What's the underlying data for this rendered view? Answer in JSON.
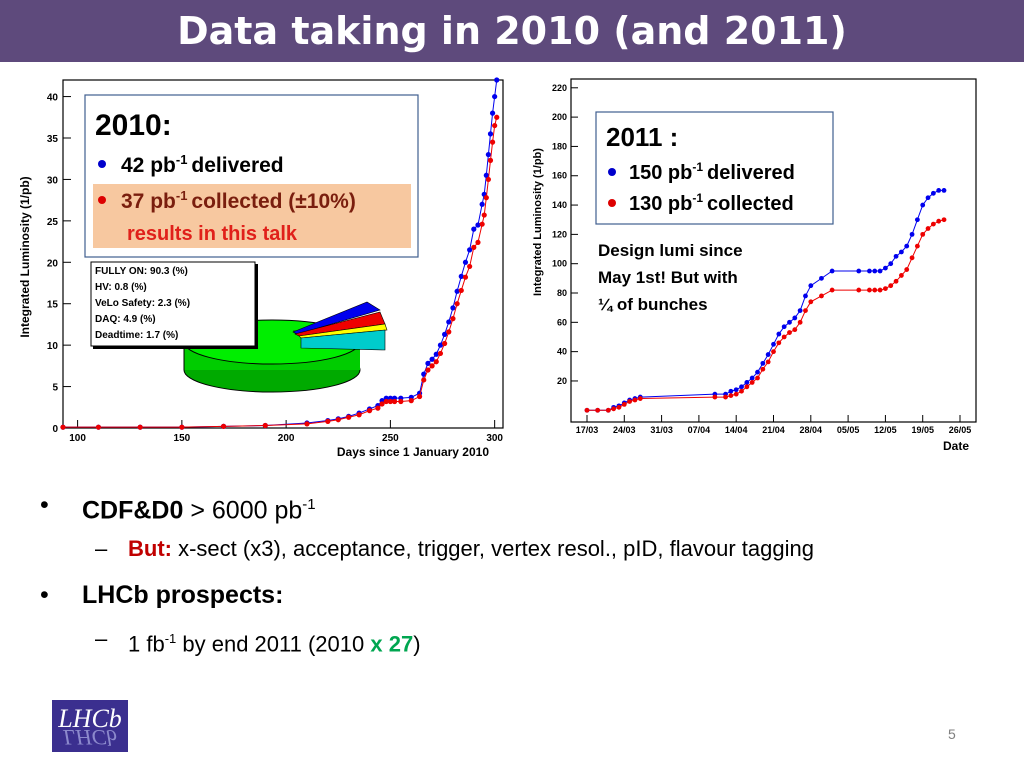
{
  "title": "Data taking in 2010 (and 2011)",
  "chart_2010": {
    "type": "line",
    "ylabel": "Integrated Luminosity (1/pb)",
    "xlabel": "Days since 1 January 2010",
    "x_ticks": [
      "100",
      "150",
      "200",
      "250",
      "300"
    ],
    "y_ticks": [
      "0",
      "5",
      "10",
      "15",
      "20",
      "25",
      "30",
      "35",
      "40"
    ],
    "xlim": [
      93,
      304
    ],
    "ylim": [
      0,
      42
    ],
    "series": [
      {
        "color": "#0000ee",
        "x": [
          93,
          110,
          130,
          150,
          170,
          190,
          210,
          220,
          225,
          230,
          235,
          240,
          244,
          246,
          248,
          250,
          252,
          255,
          260,
          264,
          266,
          268,
          270,
          272,
          274,
          276,
          278,
          280,
          282,
          284,
          286,
          288,
          290,
          292,
          294,
          295,
          296,
          297,
          298,
          299,
          300,
          301
        ],
        "y": [
          0.1,
          0.1,
          0.1,
          0.1,
          0.2,
          0.3,
          0.6,
          0.9,
          1.1,
          1.4,
          1.8,
          2.3,
          2.7,
          3.3,
          3.6,
          3.6,
          3.6,
          3.6,
          3.7,
          4.2,
          6.5,
          7.8,
          8.3,
          8.9,
          10,
          11.3,
          12.8,
          14.5,
          16.5,
          18.3,
          20,
          21.5,
          24,
          24.5,
          27,
          28.2,
          30.5,
          33,
          35.5,
          38,
          40,
          42
        ]
      },
      {
        "color": "#ee0000",
        "x": [
          93,
          110,
          130,
          150,
          170,
          190,
          210,
          220,
          225,
          230,
          235,
          240,
          244,
          246,
          248,
          250,
          252,
          255,
          260,
          264,
          266,
          268,
          270,
          272,
          274,
          276,
          278,
          280,
          282,
          284,
          286,
          288,
          290,
          292,
          294,
          295,
          296,
          297,
          298,
          299,
          300,
          301
        ],
        "y": [
          0.1,
          0.1,
          0.1,
          0.1,
          0.2,
          0.3,
          0.5,
          0.8,
          1,
          1.3,
          1.6,
          2.1,
          2.4,
          2.9,
          3.2,
          3.2,
          3.2,
          3.2,
          3.3,
          3.8,
          5.8,
          7,
          7.5,
          8,
          9,
          10.2,
          11.6,
          13.2,
          15,
          16.6,
          18.2,
          19.5,
          21.8,
          22.4,
          24.6,
          25.7,
          27.8,
          30,
          32.3,
          34.5,
          36.5,
          37.5
        ]
      }
    ],
    "box": {
      "heading": "2010:",
      "item1_value": "42 pb",
      "item1_sup": "-1",
      "item1_text": "delivered",
      "item2_value": "37 pb",
      "item2_sup": "-1",
      "item2_text": "collected (±10%)",
      "item2_note": "results in this talk"
    },
    "legend": [
      "FULLY ON: 90.3 (%)",
      "HV: 0.8 (%)",
      "VeLo Safety: 2.3 (%)",
      "DAQ: 4.9 (%)",
      "Deadtime: 1.7 (%)"
    ],
    "pie": {
      "values": [
        90.3,
        0.8,
        2.3,
        4.9,
        1.7
      ],
      "colors": [
        "#00ee00",
        "#ff00ff",
        "#ee0000",
        "#0000ee",
        "#ffff00"
      ]
    }
  },
  "chart_2011": {
    "type": "line",
    "ylabel": "Integrated Luminosity (1/pb)",
    "xlabel": "Date",
    "x_ticks": [
      "17/03",
      "24/03",
      "31/03",
      "07/04",
      "14/04",
      "21/04",
      "28/04",
      "05/05",
      "12/05",
      "19/05",
      "26/05"
    ],
    "y_ticks": [
      "20",
      "40",
      "60",
      "80",
      "100",
      "120",
      "140",
      "160",
      "180",
      "200",
      "220"
    ],
    "xlim": [
      -3,
      73
    ],
    "ylim": [
      -8,
      226
    ],
    "series": [
      {
        "color": "#0000ee",
        "x": [
          0,
          2,
          4,
          5,
          6,
          7,
          8,
          9,
          10,
          24,
          26,
          27,
          28,
          29,
          30,
          31,
          32,
          33,
          34,
          35,
          36,
          37,
          38,
          39,
          40,
          41,
          42,
          44,
          46,
          51,
          53,
          54,
          55,
          56,
          57,
          58,
          59,
          60,
          61,
          62,
          63,
          64,
          65,
          66,
          67
        ],
        "y": [
          0,
          0,
          0,
          2,
          3,
          5,
          7,
          8,
          9,
          11,
          11,
          13,
          14,
          16,
          19,
          22,
          26,
          32,
          38,
          45,
          52,
          57,
          60,
          63,
          68,
          78,
          85,
          90,
          95,
          95,
          95,
          95,
          95,
          97,
          100,
          105,
          108,
          112,
          120,
          130,
          140,
          145,
          148,
          150,
          150
        ]
      },
      {
        "color": "#ee0000",
        "x": [
          0,
          2,
          4,
          5,
          6,
          7,
          8,
          9,
          10,
          24,
          26,
          27,
          28,
          29,
          30,
          31,
          32,
          33,
          34,
          35,
          36,
          37,
          38,
          39,
          40,
          41,
          42,
          44,
          46,
          51,
          53,
          54,
          55,
          56,
          57,
          58,
          59,
          60,
          61,
          62,
          63,
          64,
          65,
          66,
          67
        ],
        "y": [
          0,
          0,
          0,
          1,
          2,
          4,
          6,
          7,
          8,
          9,
          9,
          10,
          11,
          13,
          16,
          19,
          22,
          28,
          33,
          40,
          46,
          50,
          53,
          55,
          60,
          68,
          74,
          78,
          82,
          82,
          82,
          82,
          82,
          83,
          85,
          88,
          92,
          96,
          104,
          112,
          120,
          124,
          127,
          129,
          130
        ]
      }
    ],
    "box": {
      "heading": "2011 :",
      "item1_value": "150 pb",
      "item1_sup": "-1",
      "item1_text": "delivered",
      "item2_value": "130 pb",
      "item2_sup": "-1",
      "item2_text": "collected"
    },
    "note_lines": [
      "Design lumi since",
      "May 1st! But with",
      "¼ of bunches"
    ]
  },
  "bullets": {
    "b1_bold": "CDF&D0",
    "b1_text": " > 6000 pb",
    "b1_sup": "-1",
    "b1_sub_label": "But:",
    "b1_sub_text": " x-sect (x3), acceptance, trigger, vertex resol., pID, flavour tagging",
    "b2_bold": "LHCb prospects:",
    "b2_sub_a": "1 fb",
    "b2_sub_sup": "-1",
    "b2_sub_b": " by end 2011 (2010 ",
    "b2_sub_green": "x 27",
    "b2_sub_c": ")"
  },
  "logo": "LHCb",
  "page_number": "5"
}
